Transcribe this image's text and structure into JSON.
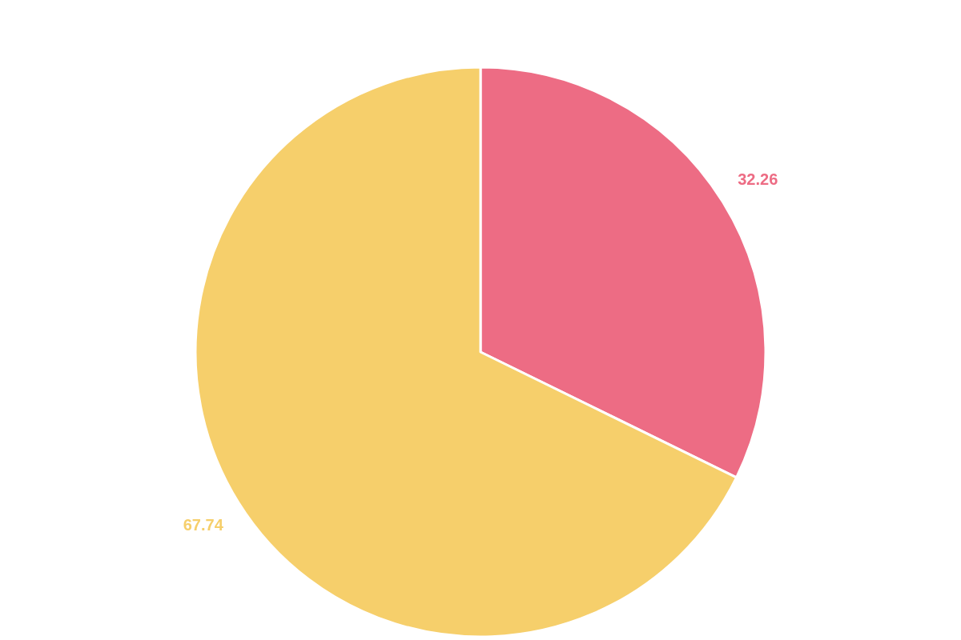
{
  "chart_data": {
    "type": "pie",
    "categories": [
      null,
      null
    ],
    "values": [
      32.26,
      67.74
    ],
    "colors": [
      "#ed6c84",
      "#f6cf6b"
    ],
    "data_labels": true
  }
}
